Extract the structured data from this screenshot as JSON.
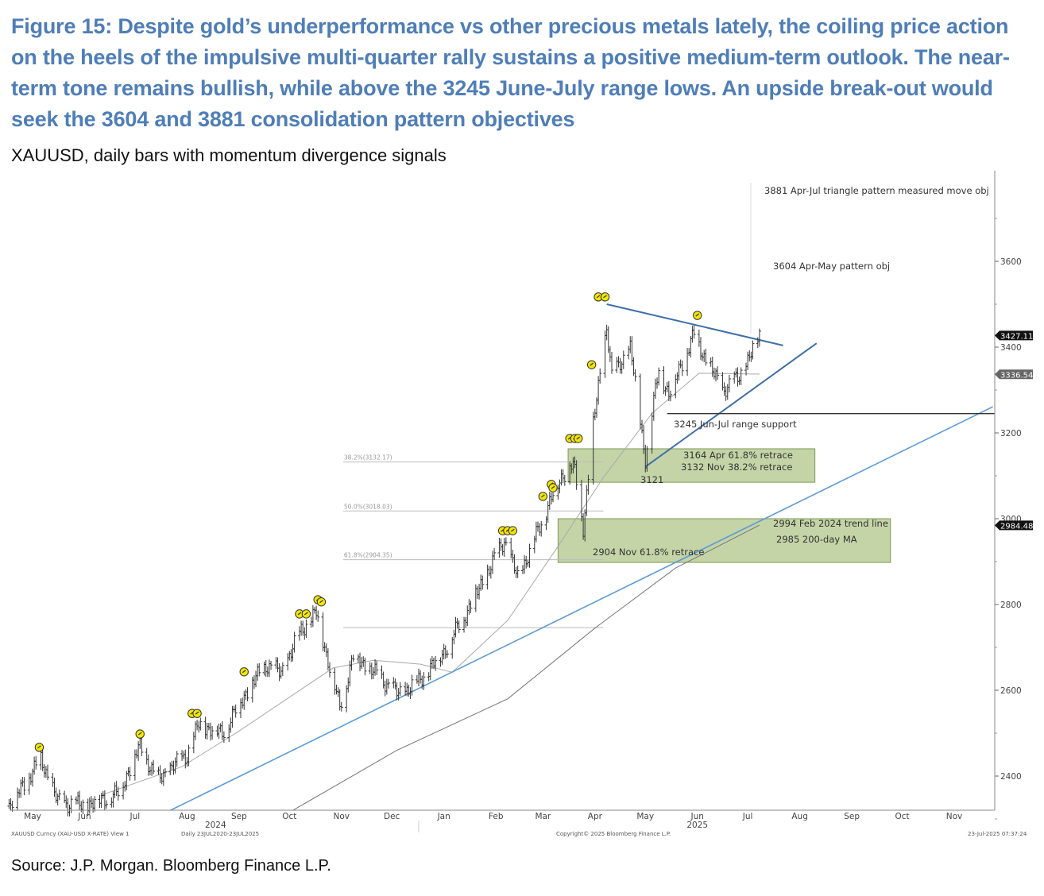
{
  "header": {
    "title": "Figure 15: Despite gold’s underperformance vs other precious metals lately, the coiling price action on the heels of the impulsive multi-quarter rally sustains a positive medium-term outlook. The near-term tone remains bullish, while above the 3245 June-July range lows. An upside break-out would seek the 3604 and 3881 consolidation pattern objectives",
    "subtitle": "XAUUSD, daily bars with momentum divergence signals"
  },
  "source": "Source: J.P. Morgan. Bloomberg Finance L.P.",
  "footer": {
    "ticker": "XAUUSD Curncy (XAU-USD X-RATE) View 1",
    "range": "Daily 23JUL2020-23JUL2025",
    "copyright": "Copyright© 2025 Bloomberg Finance L.P.",
    "timestamp": "23-Jul-2025 07:37:24"
  },
  "colors": {
    "title": "#4f7eb7",
    "bars": "#333333",
    "trend_line": "#5b9bd5",
    "triangle": "#3f6fa8",
    "zone": "#a9c27f",
    "signal": "#f2e600"
  },
  "chart_data": {
    "type": "bar",
    "subtype": "ohlc",
    "xlim": [
      "2024-04-30",
      "2025-12-08"
    ],
    "ylim": [
      2320,
      3810
    ],
    "grid": false,
    "y_axis_position": "right",
    "y_ticks": [
      "2400",
      "2600",
      "2800",
      "3000",
      "3200",
      "3400",
      "3600"
    ],
    "x_ticks": [
      {
        "label": "May",
        "date": "2024-05-15"
      },
      {
        "label": "Jun",
        "date": "2024-06-15"
      },
      {
        "label": "Jul",
        "date": "2024-07-15"
      },
      {
        "label": "Aug",
        "date": "2024-08-15"
      },
      {
        "label": "Sep",
        "date": "2024-09-15"
      },
      {
        "label": "Oct",
        "date": "2024-10-15"
      },
      {
        "label": "Nov",
        "date": "2024-11-15"
      },
      {
        "label": "Dec",
        "date": "2024-12-15"
      },
      {
        "label": "Jan",
        "date": "2025-01-15"
      },
      {
        "label": "Feb",
        "date": "2025-02-15"
      },
      {
        "label": "Mar",
        "date": "2025-03-15"
      },
      {
        "label": "Apr",
        "date": "2025-04-15"
      },
      {
        "label": "May",
        "date": "2025-05-15"
      },
      {
        "label": "Jun",
        "date": "2025-06-15"
      },
      {
        "label": "Jul",
        "date": "2025-07-15"
      },
      {
        "label": "Aug",
        "date": "2025-08-15"
      },
      {
        "label": "Sep",
        "date": "2025-09-15"
      },
      {
        "label": "Oct",
        "date": "2025-10-15"
      },
      {
        "label": "Nov",
        "date": "2025-11-15"
      }
    ],
    "years": [
      {
        "label": "2024",
        "date": "2024-09-01"
      },
      {
        "label": "2025",
        "date": "2025-06-15"
      }
    ],
    "price_approx": [
      [
        "2024-05-01",
        2330
      ],
      [
        "2024-05-20",
        2440
      ],
      [
        "2024-05-30",
        2340
      ],
      [
        "2024-06-15",
        2330
      ],
      [
        "2024-07-05",
        2360
      ],
      [
        "2024-07-18",
        2470
      ],
      [
        "2024-07-28",
        2390
      ],
      [
        "2024-08-15",
        2450
      ],
      [
        "2024-08-22",
        2520
      ],
      [
        "2024-09-05",
        2500
      ],
      [
        "2024-09-20",
        2600
      ],
      [
        "2024-10-01",
        2660
      ],
      [
        "2024-10-10",
        2640
      ],
      [
        "2024-10-22",
        2740
      ],
      [
        "2024-10-31",
        2780
      ],
      [
        "2024-11-14",
        2560
      ],
      [
        "2024-11-22",
        2680
      ],
      [
        "2024-12-05",
        2640
      ],
      [
        "2024-12-19",
        2590
      ],
      [
        "2024-12-31",
        2620
      ],
      [
        "2025-01-15",
        2690
      ],
      [
        "2025-01-31",
        2800
      ],
      [
        "2025-02-20",
        2950
      ],
      [
        "2025-02-28",
        2860
      ],
      [
        "2025-03-14",
        2990
      ],
      [
        "2025-03-20",
        3050
      ],
      [
        "2025-03-31",
        3130
      ],
      [
        "2025-04-03",
        3110
      ],
      [
        "2025-04-08",
        2980
      ],
      [
        "2025-04-14",
        3220
      ],
      [
        "2025-04-22",
        3450
      ],
      [
        "2025-04-25",
        3330
      ],
      [
        "2025-05-06",
        3400
      ],
      [
        "2025-05-15",
        3140
      ],
      [
        "2025-05-23",
        3350
      ],
      [
        "2025-05-29",
        3290
      ],
      [
        "2025-06-13",
        3430
      ],
      [
        "2025-06-20",
        3370
      ],
      [
        "2025-06-30",
        3300
      ],
      [
        "2025-07-10",
        3330
      ],
      [
        "2025-07-22",
        3427
      ]
    ],
    "ma_200": [
      [
        "2024-10-17",
        2320
      ],
      [
        "2024-12-18",
        2460
      ],
      [
        "2025-02-22",
        2580
      ],
      [
        "2025-04-15",
        2745
      ],
      [
        "2025-06-02",
        2885
      ],
      [
        "2025-07-22",
        2985
      ]
    ],
    "ma_50": [
      [
        "2024-06-26",
        2357
      ],
      [
        "2024-08-12",
        2422
      ],
      [
        "2024-09-15",
        2505
      ],
      [
        "2024-11-10",
        2652
      ],
      [
        "2024-12-04",
        2670
      ],
      [
        "2025-01-01",
        2661
      ],
      [
        "2025-01-20",
        2642
      ],
      [
        "2025-02-22",
        2763
      ],
      [
        "2025-03-23",
        2930
      ],
      [
        "2025-04-20",
        3096
      ],
      [
        "2025-05-19",
        3246
      ],
      [
        "2025-06-16",
        3339
      ],
      [
        "2025-07-22",
        3337
      ]
    ],
    "price_labels": [
      {
        "text": "3427.11",
        "value": 3427.11,
        "style": "dark"
      },
      {
        "text": "3336.54",
        "value": 3336.54,
        "style": "grey"
      },
      {
        "text": "2984.48",
        "value": 2984.48,
        "style": "dark"
      }
    ],
    "signals": [
      [
        "2024-05-19",
        2467
      ],
      [
        "2024-07-18",
        2498
      ],
      [
        "2024-08-18",
        2546
      ],
      [
        "2024-08-21",
        2546
      ],
      [
        "2024-09-18",
        2643
      ],
      [
        "2024-10-21",
        2778
      ],
      [
        "2024-10-25",
        2778
      ],
      [
        "2024-11-01",
        2811
      ],
      [
        "2024-11-03",
        2806
      ],
      [
        "2025-02-19",
        2972
      ],
      [
        "2025-02-22",
        2972
      ],
      [
        "2025-02-25",
        2972
      ],
      [
        "2025-03-15",
        3052
      ],
      [
        "2025-03-20",
        3080
      ],
      [
        "2025-03-21",
        3072
      ],
      [
        "2025-03-31",
        3187
      ],
      [
        "2025-04-03",
        3187
      ],
      [
        "2025-04-05",
        3187
      ],
      [
        "2025-04-13",
        3359
      ],
      [
        "2025-04-17",
        3517
      ],
      [
        "2025-04-21",
        3517
      ],
      [
        "2025-06-15",
        3474
      ]
    ],
    "trend_line": [
      [
        "2024-08-05",
        2320
      ],
      [
        "2025-12-08",
        3261
      ]
    ],
    "triangle_upper": [
      [
        "2025-04-22",
        3500
      ],
      [
        "2025-08-05",
        3404
      ]
    ],
    "triangle_lower": [
      [
        "2025-05-15",
        3121
      ],
      [
        "2025-08-25",
        3409
      ]
    ],
    "support_line": {
      "from": "2025-05-28",
      "value": 3245
    },
    "fib_levels": [
      {
        "label": "38.2%(3132.17)",
        "value": 3132.17
      },
      {
        "label": "50.0%(3018.03)",
        "value": 3018.03
      },
      {
        "label": "61.8%(2904.35)",
        "value": 2904.35
      },
      {
        "label": "",
        "value": 2746
      }
    ],
    "fib_range": [
      "2024-11-16",
      "2025-04-20"
    ],
    "zones": [
      {
        "from": "2025-03-30",
        "to": "2025-08-24",
        "top": 3163,
        "bottom": 3085
      },
      {
        "from": "2025-03-24",
        "to": "2025-10-08",
        "top": 3000,
        "bottom": 2898
      }
    ],
    "annotations": {
      "obj_3881": "3881 Apr-Jul triangle pattern measured move obj",
      "obj_3604": "3604 Apr-May pattern obj",
      "support_3245": "3245 Jun-Jul range support",
      "retrace_3164": "3164 Apr 61.8% retrace",
      "retrace_3132": "3132 Nov 38.2% retrace",
      "low_3121": "3121",
      "trend_2994": "2994 Feb 2024 trend line",
      "ma_2985": "2985 200-day MA",
      "retrace_2904": "2904 Nov 61.8% retrace"
    }
  }
}
